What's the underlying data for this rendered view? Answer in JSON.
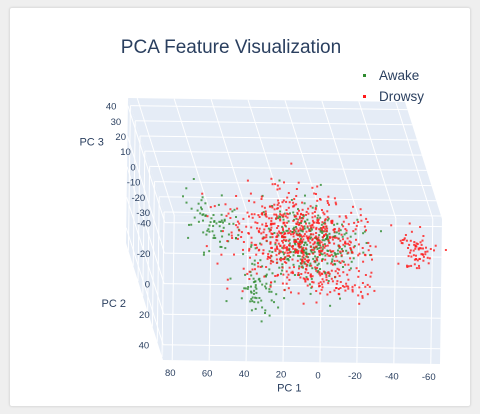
{
  "chart_data": {
    "type": "scatter",
    "projection": "3d",
    "title": "PCA Feature Visualization",
    "axes": {
      "x": {
        "label": "PC 1",
        "ticks": [
          -60,
          -40,
          -20,
          0,
          20,
          40,
          60,
          80
        ],
        "range": [
          -65,
          85
        ]
      },
      "y": {
        "label": "PC 2",
        "ticks": [
          -40,
          -20,
          0,
          20,
          40
        ],
        "range": [
          -45,
          50
        ]
      },
      "z": {
        "label": "PC 3",
        "ticks": [
          -30,
          -20,
          -10,
          0,
          10,
          20,
          30,
          40
        ],
        "range": [
          -32,
          45
        ]
      }
    },
    "legend": {
      "placement": "top-right"
    },
    "grid": true,
    "series": [
      {
        "name": "Awake",
        "color": "#2e8b2e",
        "clusters": [
          {
            "center": [
              2,
              -5,
              -8
            ],
            "spread": [
              12,
              8,
              10
            ],
            "count": 260
          },
          {
            "center": [
              55,
              -22,
              -15
            ],
            "spread": [
              7,
              5,
              8
            ],
            "count": 70
          },
          {
            "center": [
              30,
              15,
              -20
            ],
            "spread": [
              6,
              8,
              6
            ],
            "count": 70
          },
          {
            "center": [
              -10,
              -15,
              -14
            ],
            "spread": [
              7,
              5,
              6
            ],
            "count": 40
          }
        ]
      },
      {
        "name": "Drowsy",
        "color": "#ff1a1a",
        "clusters": [
          {
            "center": [
              5,
              -5,
              -6
            ],
            "spread": [
              18,
              10,
              12
            ],
            "count": 650
          },
          {
            "center": [
              -55,
              -15,
              -22
            ],
            "spread": [
              4,
              3,
              6
            ],
            "count": 70
          },
          {
            "center": [
              -12,
              10,
              -20
            ],
            "spread": [
              10,
              4,
              4
            ],
            "count": 60
          }
        ]
      }
    ]
  }
}
